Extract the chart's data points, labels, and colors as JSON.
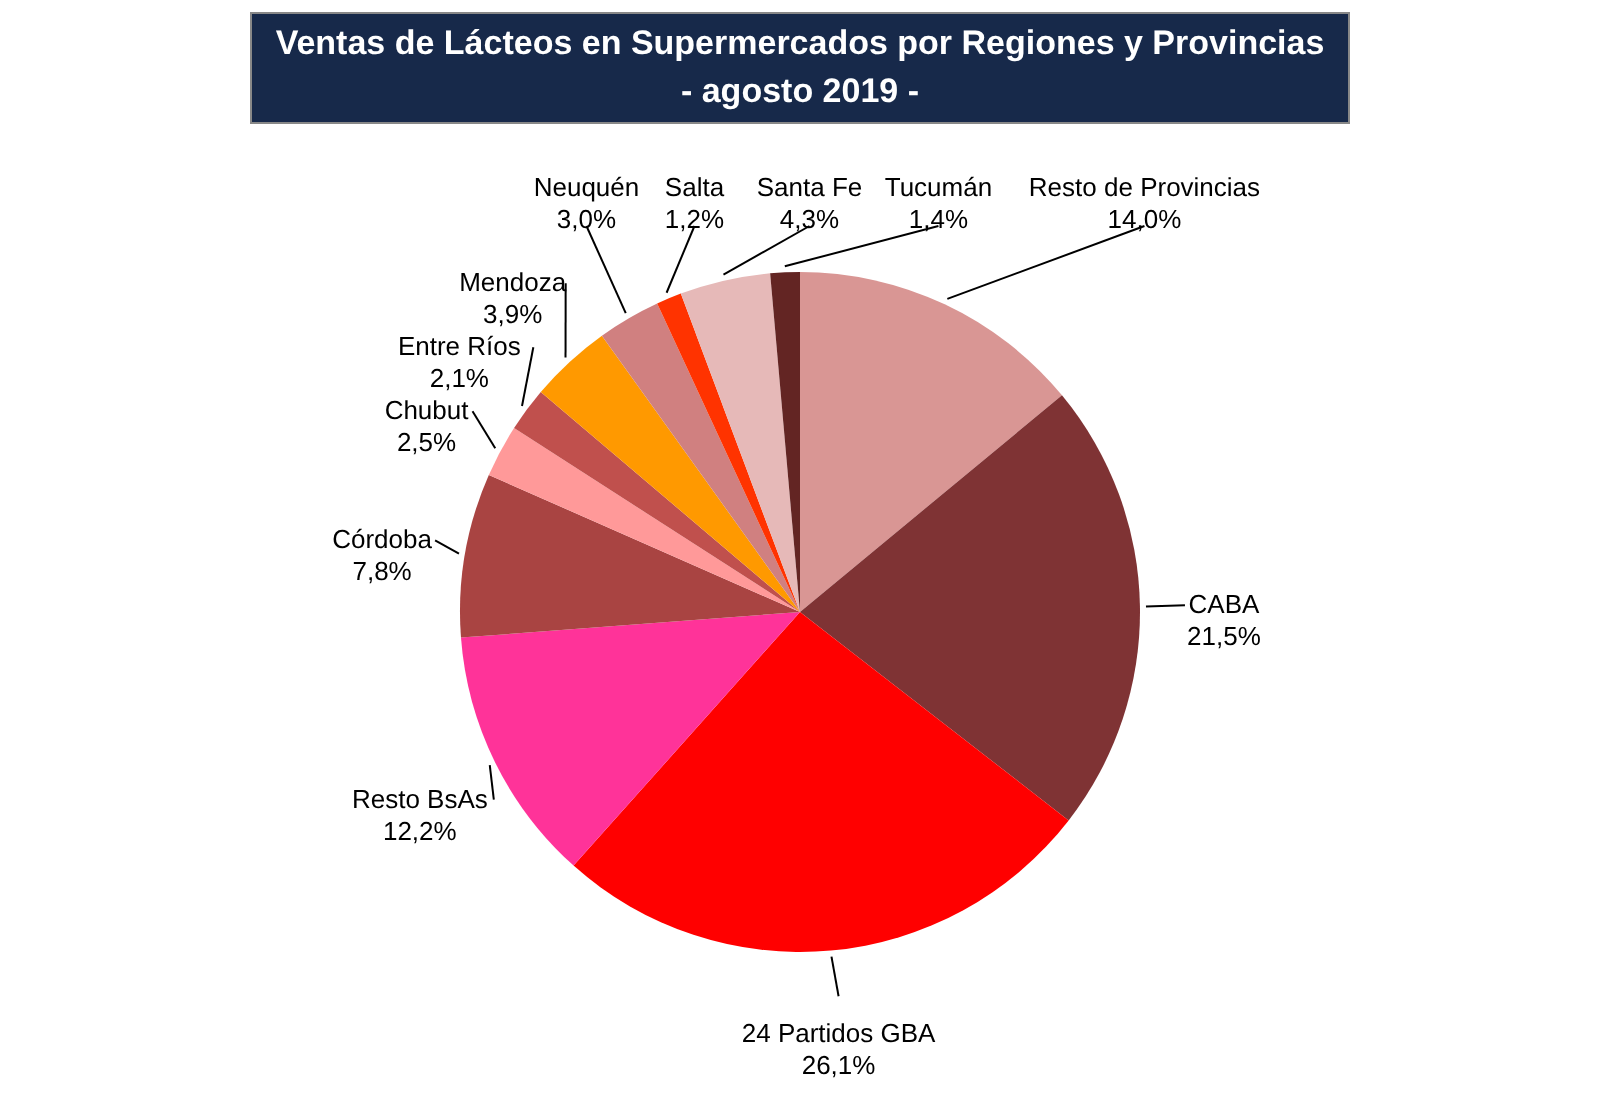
{
  "chart_data": {
    "type": "pie",
    "title": "Ventas de Lácteos en Supermercados por Regiones y Provincias",
    "subtitle": "- agosto 2019 -",
    "categories": [
      "Resto de Provincias",
      "CABA",
      "24 Partidos GBA",
      "Resto BsAs",
      "Córdoba",
      "Chubut",
      "Entre Ríos",
      "Mendoza",
      "Neuquén",
      "Salta",
      "Santa Fe",
      "Tucumán"
    ],
    "values": [
      14.0,
      21.5,
      26.1,
      12.2,
      7.8,
      2.5,
      2.1,
      3.9,
      3.0,
      1.2,
      4.3,
      1.4
    ],
    "value_labels": [
      "14,0%",
      "21,5%",
      "26,1%",
      "12,2%",
      "7,8%",
      "2,5%",
      "2,1%",
      "3,9%",
      "3,0%",
      "1,2%",
      "4,3%",
      "1,4%"
    ],
    "colors": [
      "#d99694",
      "#7f3334",
      "#ff0000",
      "#ff3399",
      "#a94442",
      "#ff9999",
      "#c0504d",
      "#ff9900",
      "#d08080",
      "#ff3300",
      "#e6b9b8",
      "#632523"
    ]
  }
}
